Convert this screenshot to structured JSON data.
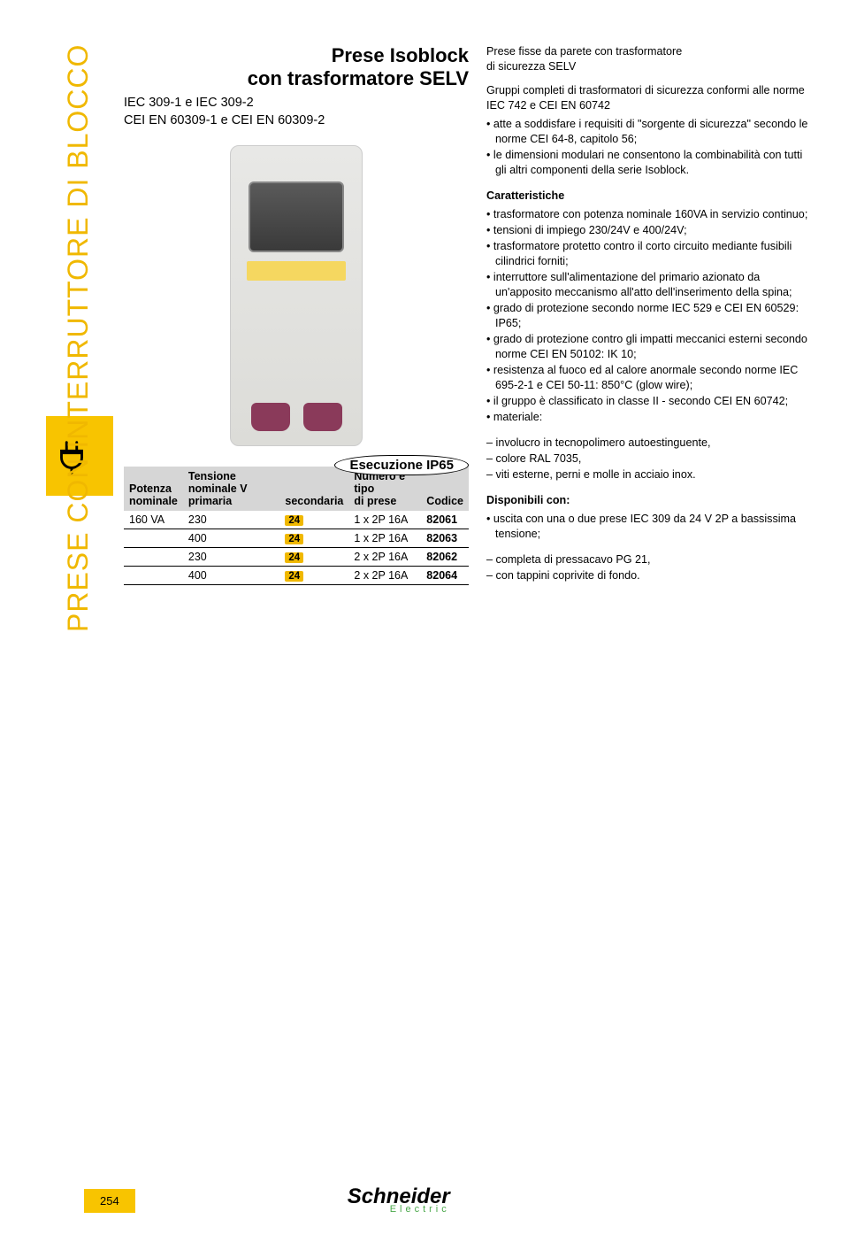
{
  "vertical_title": "PRESE CON INTERRUTTORE DI BLOCCO",
  "header": {
    "title_l1": "Prese Isoblock",
    "title_l2": "con trasformatore SELV",
    "subtitle_l1": "IEC 309-1 e IEC 309-2",
    "subtitle_l2": "CEI EN 60309-1 e CEI EN 60309-2"
  },
  "execution_label": "Esecuzione IP65",
  "table": {
    "columns": {
      "c1a": "Potenza",
      "c1b": "nominale",
      "c2a": "Tensione nominale V",
      "c2b_l": "primaria",
      "c2b_r": "secondaria",
      "c3a": "Numero e tipo",
      "c3b": "di prese",
      "c4": "Codice"
    },
    "rows": [
      {
        "potenza": "160 VA",
        "prim": "230",
        "sec": "24",
        "tipo": "1 x 2P 16A",
        "codice": "82061"
      },
      {
        "potenza": "",
        "prim": "400",
        "sec": "24",
        "tipo": "1 x 2P 16A",
        "codice": "82063"
      },
      {
        "potenza": "",
        "prim": "230",
        "sec": "24",
        "tipo": "2 x 2P 16A",
        "codice": "82062"
      },
      {
        "potenza": "",
        "prim": "400",
        "sec": "24",
        "tipo": "2 x 2P 16A",
        "codice": "82064"
      }
    ]
  },
  "right": {
    "lead_l1": "Prese fisse da parete con trasformatore",
    "lead_l2": "di sicurezza SELV",
    "intro": "Gruppi completi di trasformatori di sicurezza conformi alle norme IEC 742 e CEI EN 60742",
    "intro_bullets": [
      "atte a soddisfare i requisiti di \"sorgente di sicurezza\" secondo le norme CEI 64-8, capitolo 56;",
      "le dimensioni modulari ne consentono la combinabilità con tutti gli altri componenti della serie Isoblock."
    ],
    "sect1_title": "Caratteristiche",
    "sect1_bullets": [
      "trasformatore con potenza nominale 160VA in servizio continuo;",
      "tensioni di impiego 230/24V e 400/24V;",
      "trasformatore protetto contro il corto circuito mediante fusibili cilindrici forniti;",
      "interruttore sull'alimentazione del primario azionato da un'apposito meccanismo all'atto dell'inserimento della spina;",
      "grado di protezione secondo norme IEC 529 e CEI EN 60529: IP65;",
      "grado di protezione contro gli impatti meccanici esterni secondo norme CEI EN 50102: IK 10;",
      "resistenza al fuoco ed al calore anormale secondo norme IEC 695-2-1 e CEI 50-11: 850°C (glow wire);",
      "il gruppo è classificato in classe II - secondo CEI EN 60742;",
      "materiale:"
    ],
    "sect1_dash": [
      "involucro in tecnopolimero autoestinguente,",
      "colore RAL 7035,",
      "viti esterne, perni e molle in acciaio inox."
    ],
    "sect2_title": "Disponibili con:",
    "sect2_bullets": [
      "uscita con una o due prese IEC 309 da 24 V 2P a bassissima tensione;"
    ],
    "sect2_dash": [
      "completa di pressacavo PG 21,",
      "con tappini coprivite di fondo."
    ]
  },
  "footer": {
    "page": "254",
    "brand": "Schneider",
    "brand_sub": "Electric"
  },
  "colors": {
    "accent": "#f8c400",
    "accent_text": "#f0b800",
    "header_bg": "#d6d6d6",
    "brand_green": "#4aa84a"
  }
}
